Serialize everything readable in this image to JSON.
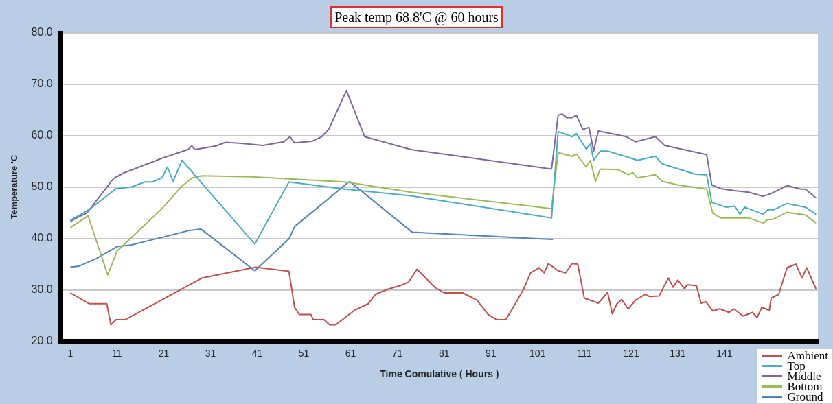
{
  "chart_data": {
    "type": "line",
    "title": "Peak temp 68.8'C @ 60 hours",
    "xlabel": "Time Comulative ( Hours )",
    "ylabel": "Temperature 'C",
    "xlim": [
      -1,
      161
    ],
    "xticks": [
      1,
      11,
      21,
      31,
      41,
      51,
      61,
      71,
      81,
      91,
      101,
      111,
      121,
      131,
      141
    ],
    "ylim": [
      20,
      80
    ],
    "yticks": [
      {
        "value": 20,
        "label": "20.0"
      },
      {
        "value": 30,
        "label": "30.0"
      },
      {
        "value": 40,
        "label": "40.0"
      },
      {
        "value": 50,
        "label": "50.0"
      },
      {
        "value": 60,
        "label": "60.0"
      },
      {
        "value": 70,
        "label": "70.0"
      },
      {
        "value": 80,
        "label": "80.0"
      }
    ],
    "grid": "y",
    "legend": "bottom right",
    "marker": "none",
    "line_style": "solid",
    "series": [
      {
        "name": "Ambient",
        "color": "#c0504d",
        "x": [
          1,
          5,
          8.8,
          9.7,
          10.8,
          12.8,
          29.2,
          40.7,
          47.8,
          49,
          50,
          52.5,
          53,
          55.3,
          56.5,
          57.8,
          59.8,
          61.8,
          64.8,
          66.3,
          68.9,
          71.9,
          73.4,
          75.2,
          79,
          81,
          85,
          88,
          90.4,
          92.2,
          94.2,
          95.6,
          98,
          99.5,
          101.3,
          102.4,
          103.3,
          105.4,
          107,
          108.4,
          109.6,
          111,
          114,
          116,
          117,
          118,
          119,
          120.4,
          122,
          124,
          125,
          127,
          129,
          130,
          131,
          132.5,
          133,
          135,
          136,
          137,
          138.5,
          140,
          142,
          143,
          145,
          147,
          148,
          149,
          150.6,
          151,
          152.6,
          154.4,
          156.3,
          157.6,
          158.6,
          160.6
        ],
        "values": [
          29.4,
          27.3,
          27.3,
          23.2,
          24.2,
          24.2,
          32.3,
          34.4,
          33.6,
          26.6,
          25.2,
          25.2,
          24.2,
          24.2,
          23.2,
          23.2,
          24.6,
          26,
          27.3,
          29.1,
          30.1,
          30.9,
          31.5,
          34,
          30.5,
          29.4,
          29.4,
          28,
          25.2,
          24.2,
          24.2,
          26.3,
          30.1,
          33.3,
          34.3,
          33.3,
          35.1,
          33.7,
          33.3,
          35.1,
          35,
          28.4,
          27.4,
          29.5,
          25.3,
          27.3,
          28.1,
          26.3,
          28,
          29.1,
          28.7,
          28.8,
          32.3,
          30.5,
          31.9,
          30.2,
          31,
          30.8,
          27.4,
          27.7,
          25.9,
          26.3,
          25.6,
          26.3,
          24.9,
          25.6,
          24.6,
          26.6,
          26,
          28.4,
          29.1,
          34.3,
          35,
          32.3,
          34.3,
          30.2
        ]
      },
      {
        "name": "Top",
        "color": "#4bacc6",
        "x": [
          1,
          5,
          10.8,
          14,
          17,
          18.6,
          20.6,
          21.8,
          23,
          24.9,
          40.5,
          47.8,
          59.8,
          73.9,
          104,
          105.4,
          108.4,
          109.3,
          111.4,
          112.3,
          113,
          114.4,
          116,
          120.4,
          122.4,
          126.2,
          127.7,
          130.2,
          134.8,
          137.2,
          138.3,
          141.3,
          143.2,
          144.3,
          145.3,
          149.3,
          150.3,
          151.6,
          154.4,
          158.3,
          160.6
        ],
        "values": [
          43.5,
          45.6,
          49.7,
          50,
          51,
          51,
          51.8,
          53.9,
          51.1,
          55.2,
          38.9,
          51,
          49.6,
          48.3,
          44,
          60.8,
          59.8,
          60.4,
          57.4,
          58.4,
          55.2,
          57,
          57,
          55.8,
          55.2,
          56,
          54.5,
          53.8,
          52.5,
          52.4,
          47,
          46.1,
          46.3,
          44.7,
          46.1,
          44.7,
          45.6,
          45.6,
          46.8,
          46.1,
          44.7
        ]
      },
      {
        "name": "Middle",
        "color": "#8064a2",
        "x": [
          1,
          2.8,
          4.5,
          10.3,
          12.6,
          20.6,
          26.2,
          27,
          27.7,
          32.2,
          34.2,
          37.7,
          42.2,
          46.7,
          48,
          49,
          52.7,
          54.8,
          56.3,
          60.1,
          64,
          73.9,
          104,
          105.4,
          106.3,
          107.3,
          108.4,
          109.3,
          110.7,
          112,
          113,
          114,
          120,
          122,
          126.2,
          128.2,
          137.2,
          138.3,
          140.2,
          143.2,
          146.2,
          149.3,
          151.4,
          154.4,
          157.4,
          158.3,
          160.6
        ],
        "values": [
          43.3,
          44.2,
          44.9,
          51.7,
          52.8,
          55.6,
          57.3,
          58,
          57.3,
          58,
          58.7,
          58.5,
          58.1,
          58.8,
          59.8,
          58.6,
          58.9,
          59.8,
          61.2,
          68.8,
          59.8,
          57.3,
          53.5,
          64,
          64.2,
          63.5,
          63.5,
          64,
          61.2,
          61.6,
          57,
          60.9,
          59.8,
          58.8,
          59.8,
          58.1,
          56.3,
          50.4,
          49.7,
          49.3,
          49,
          48.2,
          48.9,
          50.3,
          49.6,
          49.6,
          47.9
        ]
      },
      {
        "name": "Bottom",
        "color": "#9bbb59",
        "x": [
          1,
          4.8,
          9,
          11,
          20.6,
          24.7,
          27.1,
          29.2,
          39.8,
          59.8,
          73.9,
          104,
          105.4,
          108.4,
          109.3,
          111.4,
          112.3,
          113.4,
          114.4,
          118.2,
          120.4,
          121.4,
          122.4,
          126.2,
          127.7,
          131.2,
          137.2,
          138.5,
          140.2,
          146.2,
          149.3,
          150.3,
          151.4,
          154.4,
          158.3,
          160.6
        ],
        "values": [
          42.1,
          44.4,
          32.9,
          37.5,
          45.8,
          50,
          51.8,
          52.2,
          52,
          51,
          49,
          45.8,
          56.7,
          56,
          56.4,
          53.9,
          55.2,
          51.1,
          53.5,
          53.4,
          52.4,
          52.8,
          51.8,
          52.4,
          51.1,
          50.4,
          49.6,
          44.9,
          44,
          44,
          43,
          43.7,
          43.7,
          45.1,
          44.6,
          43
        ]
      },
      {
        "name": "Ground",
        "color": "#4f81bd",
        "x": [
          1,
          2.8,
          6.6,
          11,
          14,
          16.5,
          20.6,
          26.2,
          29,
          40.5,
          47.8,
          49,
          60.6,
          60.9,
          74.2,
          104.3
        ],
        "values": [
          34.4,
          34.6,
          36.1,
          38.4,
          38.7,
          39.3,
          40.2,
          41.5,
          41.8,
          33.7,
          39.9,
          42.3,
          51,
          51,
          41.2,
          39.8
        ]
      }
    ]
  }
}
